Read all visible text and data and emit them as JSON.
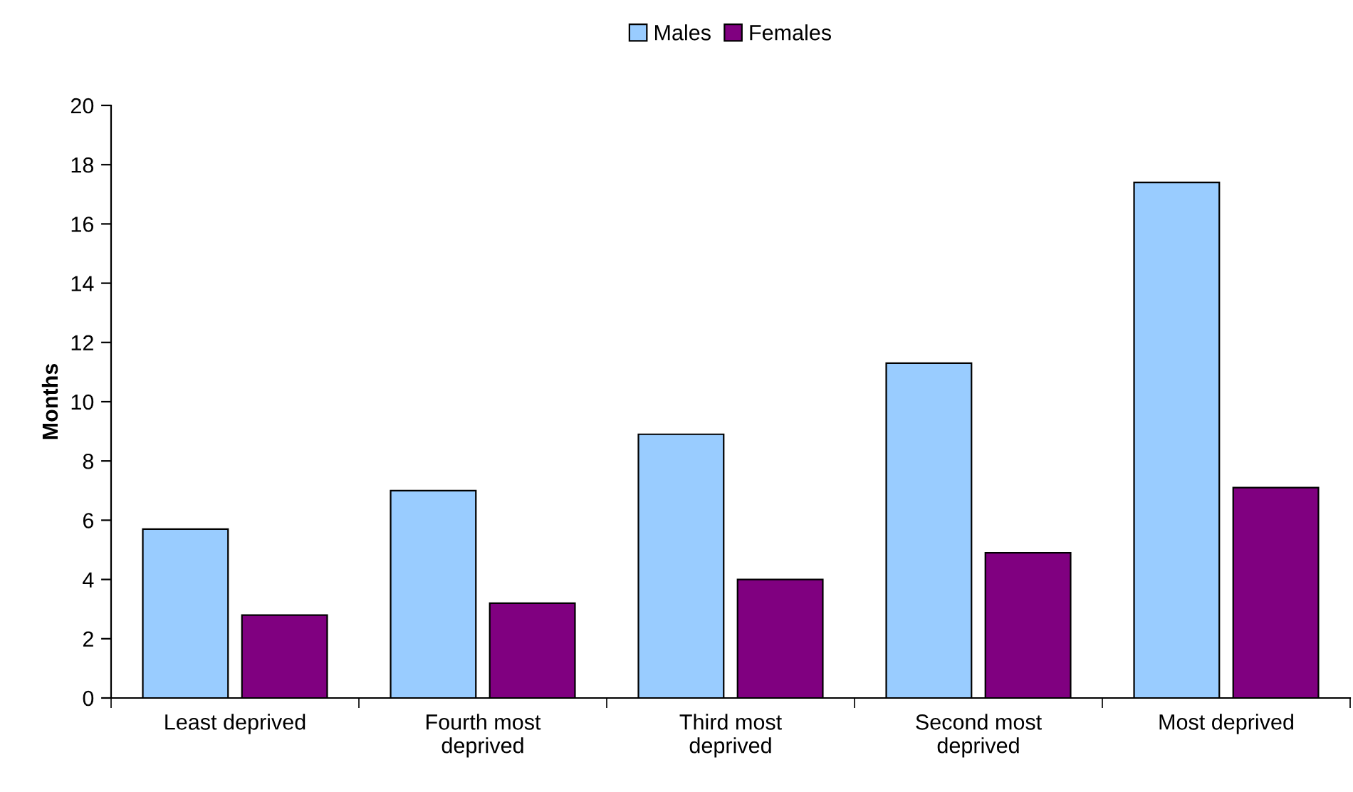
{
  "chart_data": {
    "type": "bar",
    "ylabel": "Months",
    "categories": [
      "Least deprived",
      "Fourth most\ndeprived",
      "Third most\ndeprived",
      "Second most\ndeprived",
      "Most deprived"
    ],
    "series": [
      {
        "name": "Males",
        "color": "#99ccff",
        "values": [
          5.7,
          7.0,
          8.9,
          11.3,
          17.4
        ]
      },
      {
        "name": "Females",
        "color": "#800080",
        "values": [
          2.8,
          3.2,
          4.0,
          4.9,
          7.1
        ]
      }
    ],
    "ylim": [
      0,
      20
    ],
    "yticks": [
      0,
      2,
      4,
      6,
      8,
      10,
      12,
      14,
      16,
      18,
      20
    ],
    "grid": false,
    "legend": "top"
  }
}
